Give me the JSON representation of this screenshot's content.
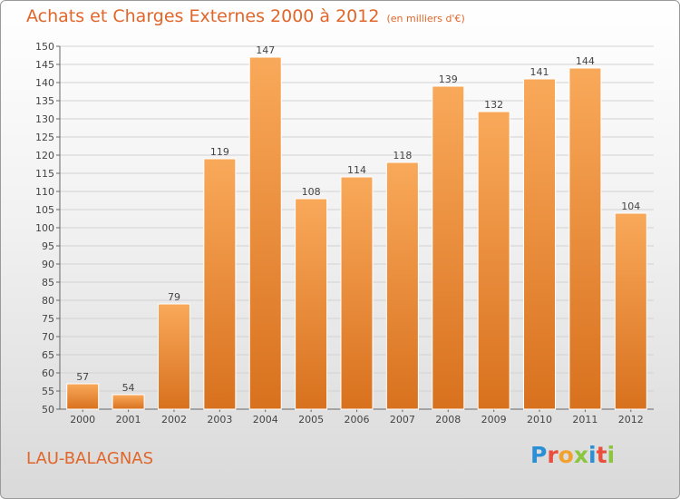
{
  "chart_data": {
    "type": "bar",
    "title": "Achats et Charges Externes 2000 à 2012",
    "subtitle": "(en milliers d'€)",
    "categories": [
      "2000",
      "2001",
      "2002",
      "2003",
      "2004",
      "2005",
      "2006",
      "2007",
      "2008",
      "2009",
      "2010",
      "2011",
      "2012"
    ],
    "values": [
      57,
      54,
      79,
      119,
      147,
      108,
      114,
      118,
      139,
      132,
      141,
      144,
      104
    ],
    "ylim": [
      50,
      150
    ],
    "yticks": [
      50,
      55,
      60,
      65,
      70,
      75,
      80,
      85,
      90,
      95,
      100,
      105,
      110,
      115,
      120,
      125,
      130,
      135,
      140,
      145,
      150
    ],
    "grid": true,
    "colors": {
      "bar_light": "#f7a552",
      "bar_dark": "#d9721f",
      "title": "#e0662a"
    }
  },
  "commune": "LAU-BALAGNAS",
  "logo": {
    "text": "Proxiti"
  }
}
